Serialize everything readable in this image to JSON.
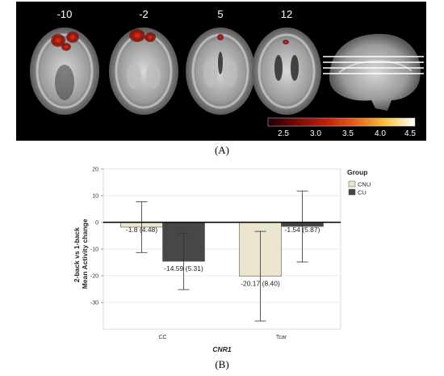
{
  "panel_a": {
    "panel_label": "(A)",
    "slice_labels": [
      "-10",
      "-2",
      "5",
      "12"
    ],
    "colorbar": {
      "ticks": [
        "2.5",
        "3.0",
        "3.5",
        "4.0",
        "4.5"
      ],
      "colors": [
        "#1a0000",
        "#7a0a05",
        "#c0200c",
        "#e8641c",
        "#f7c340",
        "#ffffff"
      ]
    }
  },
  "panel_b": {
    "panel_label": "(B)"
  },
  "chart_data": {
    "type": "bar",
    "title": "",
    "categories": [
      "CC",
      "Tcar"
    ],
    "xlabel": "CNR1",
    "ylabel_lines": [
      "2-back vs 1-back",
      "Mean Activity change"
    ],
    "ylim": [
      -40,
      20
    ],
    "yticks": [
      "20",
      "10",
      "0",
      "-10",
      "-20",
      "-30"
    ],
    "grid": true,
    "legend": {
      "title": "Group",
      "position": "top-right"
    },
    "series": [
      {
        "name": "CNU",
        "color": "#ebe5d0",
        "values": [
          -1.8,
          -20.17
        ],
        "error": [
          9.5,
          16.8
        ],
        "labels": [
          "-1.8 (4.48)",
          "-20.17 (8.40)"
        ]
      },
      {
        "name": "CU",
        "color": "#474747",
        "values": [
          -14.59,
          -1.54
        ],
        "error": [
          10.6,
          13.3
        ],
        "labels": [
          "-14.59 (5.31)",
          "-1.54 (5.87)"
        ]
      }
    ]
  }
}
